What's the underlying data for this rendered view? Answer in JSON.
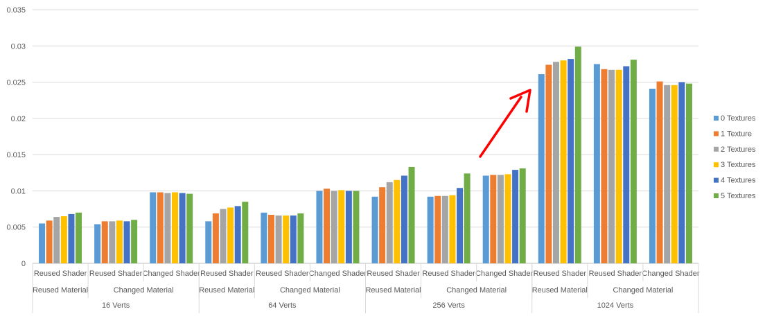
{
  "chart_data": {
    "type": "bar",
    "ylim": [
      0,
      0.035
    ],
    "yticks": [
      "0",
      "0.005",
      "0.01",
      "0.015",
      "0.02",
      "0.025",
      "0.03",
      "0.035"
    ],
    "grid": true,
    "legend_position": "right",
    "categories": [
      {
        "shader": "Reused Shader",
        "material": "Reused Material",
        "verts": "16 Verts"
      },
      {
        "shader": "Reused Shader",
        "material": "Changed Material",
        "verts": "16 Verts"
      },
      {
        "shader": "Changed Shader",
        "material": "Changed Material",
        "verts": "16 Verts"
      },
      {
        "shader": "Reused Shader",
        "material": "Reused Material",
        "verts": "64 Verts"
      },
      {
        "shader": "Reused Shader",
        "material": "Changed Material",
        "verts": "64 Verts"
      },
      {
        "shader": "Changed Shader",
        "material": "Changed Material",
        "verts": "64 Verts"
      },
      {
        "shader": "Reused Shader",
        "material": "Reused Material",
        "verts": "256 Verts"
      },
      {
        "shader": "Reused Shader",
        "material": "Changed Material",
        "verts": "256 Verts"
      },
      {
        "shader": "Changed Shader",
        "material": "Changed Material",
        "verts": "256 Verts"
      },
      {
        "shader": "Reused Shader",
        "material": "Reused Material",
        "verts": "1024 Verts"
      },
      {
        "shader": "Reused Shader",
        "material": "Changed Material",
        "verts": "1024 Verts"
      },
      {
        "shader": "Changed Shader",
        "material": "Changed Material",
        "verts": "1024 Verts"
      }
    ],
    "verts_groups": [
      "16 Verts",
      "64 Verts",
      "256 Verts",
      "1024 Verts"
    ],
    "material_groups": [
      "Reused Material",
      "Changed Material"
    ],
    "series": [
      {
        "name": "0 Textures",
        "color": "#5B9BD5",
        "values": [
          0.0055,
          0.0054,
          0.0098,
          0.0058,
          0.007,
          0.01,
          0.0092,
          0.0092,
          0.0121,
          0.0261,
          0.0275,
          0.0241
        ]
      },
      {
        "name": "1 Texture",
        "color": "#ED7D31",
        "values": [
          0.0059,
          0.0058,
          0.0098,
          0.0069,
          0.0067,
          0.0103,
          0.0105,
          0.0093,
          0.0122,
          0.0274,
          0.0268,
          0.0251
        ]
      },
      {
        "name": "2 Textures",
        "color": "#A5A5A5",
        "values": [
          0.0064,
          0.0058,
          0.0097,
          0.0075,
          0.0066,
          0.01,
          0.0112,
          0.0093,
          0.0122,
          0.0278,
          0.0267,
          0.0246
        ]
      },
      {
        "name": "3 Textures",
        "color": "#FFC000",
        "values": [
          0.0065,
          0.0059,
          0.0098,
          0.0077,
          0.0066,
          0.0101,
          0.0115,
          0.0094,
          0.0123,
          0.028,
          0.0267,
          0.0246
        ]
      },
      {
        "name": "4 Textures",
        "color": "#4472C4",
        "values": [
          0.0068,
          0.0058,
          0.0097,
          0.0079,
          0.0066,
          0.01,
          0.0121,
          0.0104,
          0.0129,
          0.0282,
          0.0272,
          0.025
        ]
      },
      {
        "name": "5 Textures",
        "color": "#70AD47",
        "values": [
          0.007,
          0.006,
          0.0096,
          0.0085,
          0.0069,
          0.01,
          0.0133,
          0.0124,
          0.0131,
          0.0299,
          0.0281,
          0.0248
        ]
      }
    ],
    "annotation": {
      "type": "arrow",
      "color": "#FF0000",
      "points_to": "1024 Verts / Reused Shader / Reused Material"
    }
  }
}
